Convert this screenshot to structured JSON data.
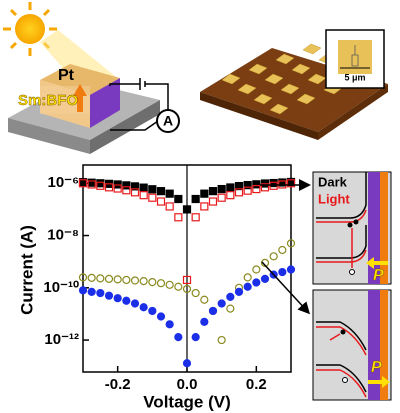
{
  "device": {
    "top_electrode": "Pt",
    "film": "Sm:BFO",
    "meter": "A"
  },
  "array": {
    "scale_bar": "5 μm"
  },
  "band_diagrams": [
    {
      "dark": "Dark",
      "light": "Light",
      "polarization": "P"
    },
    {
      "polarization": "P"
    }
  ],
  "chart_data": {
    "type": "scatter",
    "x_label": "Voltage (V)",
    "y_label": "Current (A)",
    "log_y": true,
    "xlim": [
      -0.3,
      0.3
    ],
    "ylim": [
      6e-14,
      5e-06
    ],
    "xticks": [
      -0.2,
      {
        "value": 0,
        "label": "0.0"
      },
      0.2
    ],
    "yticks": [
      {
        "value": 1e-06,
        "label": "10⁻⁶"
      },
      {
        "value": 1e-08,
        "label": "10⁻⁸"
      },
      {
        "value": 1e-10,
        "label": "10⁻¹⁰"
      },
      {
        "value": 1e-12,
        "label": "10⁻¹²"
      }
    ],
    "x": [
      -0.3,
      -0.275,
      -0.25,
      -0.225,
      -0.2,
      -0.175,
      -0.15,
      -0.125,
      -0.1,
      -0.075,
      -0.05,
      -0.025,
      0,
      0.025,
      0.05,
      0.075,
      0.1,
      0.125,
      0.15,
      0.175,
      0.2,
      0.225,
      0.25,
      0.275,
      0.3
    ],
    "series": [
      {
        "color": "#000000",
        "marker": "square",
        "filled": true,
        "values": [
          1.1e-06,
          1.05e-06,
          1e-06,
          9.5e-07,
          9e-07,
          8.3e-07,
          7.6e-07,
          6.8e-07,
          5.9e-07,
          5e-07,
          4e-07,
          2.5e-07,
          1e-07,
          2.5e-07,
          4e-07,
          5e-07,
          6e-07,
          6.9e-07,
          7.8e-07,
          8.5e-07,
          9.1e-07,
          9.8e-07,
          1.02e-06,
          1.07e-06,
          1.12e-06
        ]
      },
      {
        "color": "#e8191b",
        "marker": "square",
        "filled": false,
        "values": [
          1e-06,
          9e-07,
          8e-07,
          7e-07,
          6.3e-07,
          5.4e-07,
          4.5e-07,
          3.5e-07,
          2.8e-07,
          2e-07,
          1.3e-07,
          5e-08,
          2e-10,
          5e-08,
          1.3e-07,
          2e-07,
          2.8e-07,
          3.5e-07,
          4.5e-07,
          5.2e-07,
          6e-07,
          7e-07,
          8e-07,
          9e-07,
          1e-06
        ]
      },
      {
        "color": "#8a8a20",
        "marker": "circle",
        "filled": false,
        "values": [
          2.5e-10,
          2.4e-10,
          2.3e-10,
          2.2e-10,
          2.1e-10,
          2e-10,
          1.9e-10,
          1.8e-10,
          1.65e-10,
          1.5e-10,
          1.3e-10,
          1.1e-10,
          9e-11,
          6.3e-11,
          3.5e-11,
          1.3e-11,
          1e-12,
          1.6e-11,
          1e-10,
          2.5e-10,
          5e-10,
          9e-10,
          1.6e-09,
          2.8e-09,
          5e-09
        ]
      },
      {
        "color": "#1b2ee8",
        "marker": "circle",
        "filled": true,
        "values": [
          8e-11,
          7e-11,
          6.3e-11,
          5e-11,
          4e-11,
          3.2e-11,
          2.5e-11,
          1.8e-11,
          1.3e-11,
          8e-12,
          4e-12,
          1.3e-12,
          1.3e-13,
          1.3e-12,
          5e-12,
          1.3e-11,
          2.5e-11,
          4.5e-11,
          7e-11,
          1.1e-10,
          1.6e-10,
          2.2e-10,
          3.2e-10,
          4e-10,
          5e-10
        ]
      }
    ]
  }
}
